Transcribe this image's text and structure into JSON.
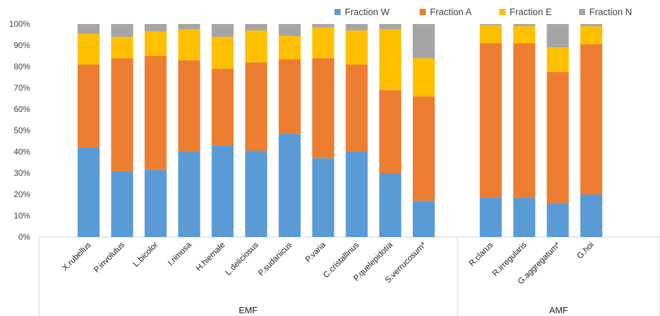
{
  "chart_data": {
    "type": "bar",
    "stacked": true,
    "percent": true,
    "categories": [
      "X.rubellus",
      "P.involutus",
      "L.bicolor",
      "I.rimosa",
      "H.hiemale",
      "L.deliciosus",
      "P.sudanicus",
      "P.varia",
      "C.cristallinus",
      "P.quelepidotia",
      "S.verrucosum*",
      "R.clarus",
      "R.irregularis",
      "G.aggregatum*",
      "G.hoi"
    ],
    "groups": [
      {
        "name": "EMF",
        "categories": [
          "X.rubellus",
          "P.involutus",
          "L.bicolor",
          "I.rimosa",
          "H.hiemale",
          "L.deliciosus",
          "P.sudanicus",
          "P.varia",
          "C.cristallinus",
          "P.quelepidotia",
          "S.verrucosum*"
        ]
      },
      {
        "name": "AMF",
        "categories": [
          "R.clarus",
          "R.irregularis",
          "G.aggregatum*",
          "G.hoi"
        ]
      }
    ],
    "series": [
      {
        "name": "Fraction W",
        "color": "#5B9BD5",
        "values": [
          42,
          31,
          31.5,
          40,
          43,
          40.5,
          48.5,
          37,
          40,
          30,
          17,
          18.5,
          18.5,
          16,
          20
        ]
      },
      {
        "name": "Fraction A",
        "color": "#ED7D31",
        "values": [
          39,
          53,
          53.5,
          43,
          36,
          41.5,
          35,
          47,
          41,
          39,
          49,
          72.5,
          72.5,
          61.5,
          70.5
        ]
      },
      {
        "name": "Fraction E",
        "color": "#FFC000",
        "values": [
          14.5,
          10,
          11.5,
          14.5,
          15,
          15,
          11,
          14.5,
          16,
          28.5,
          18,
          8.5,
          8,
          11.5,
          8.5
        ]
      },
      {
        "name": "Fraction N",
        "color": "#A5A5A5",
        "values": [
          4.5,
          6,
          3.5,
          2.5,
          6,
          3,
          5.5,
          1.5,
          3,
          2.5,
          16,
          0.5,
          1,
          11,
          1
        ]
      }
    ],
    "ylim": [
      0,
      100
    ],
    "yticks": [
      "0%",
      "10%",
      "20%",
      "30%",
      "40%",
      "50%",
      "60%",
      "70%",
      "80%",
      "90%",
      "100%"
    ],
    "xlabel": "",
    "ylabel": "",
    "title": "",
    "legend_position": "top-right",
    "grid": false
  }
}
